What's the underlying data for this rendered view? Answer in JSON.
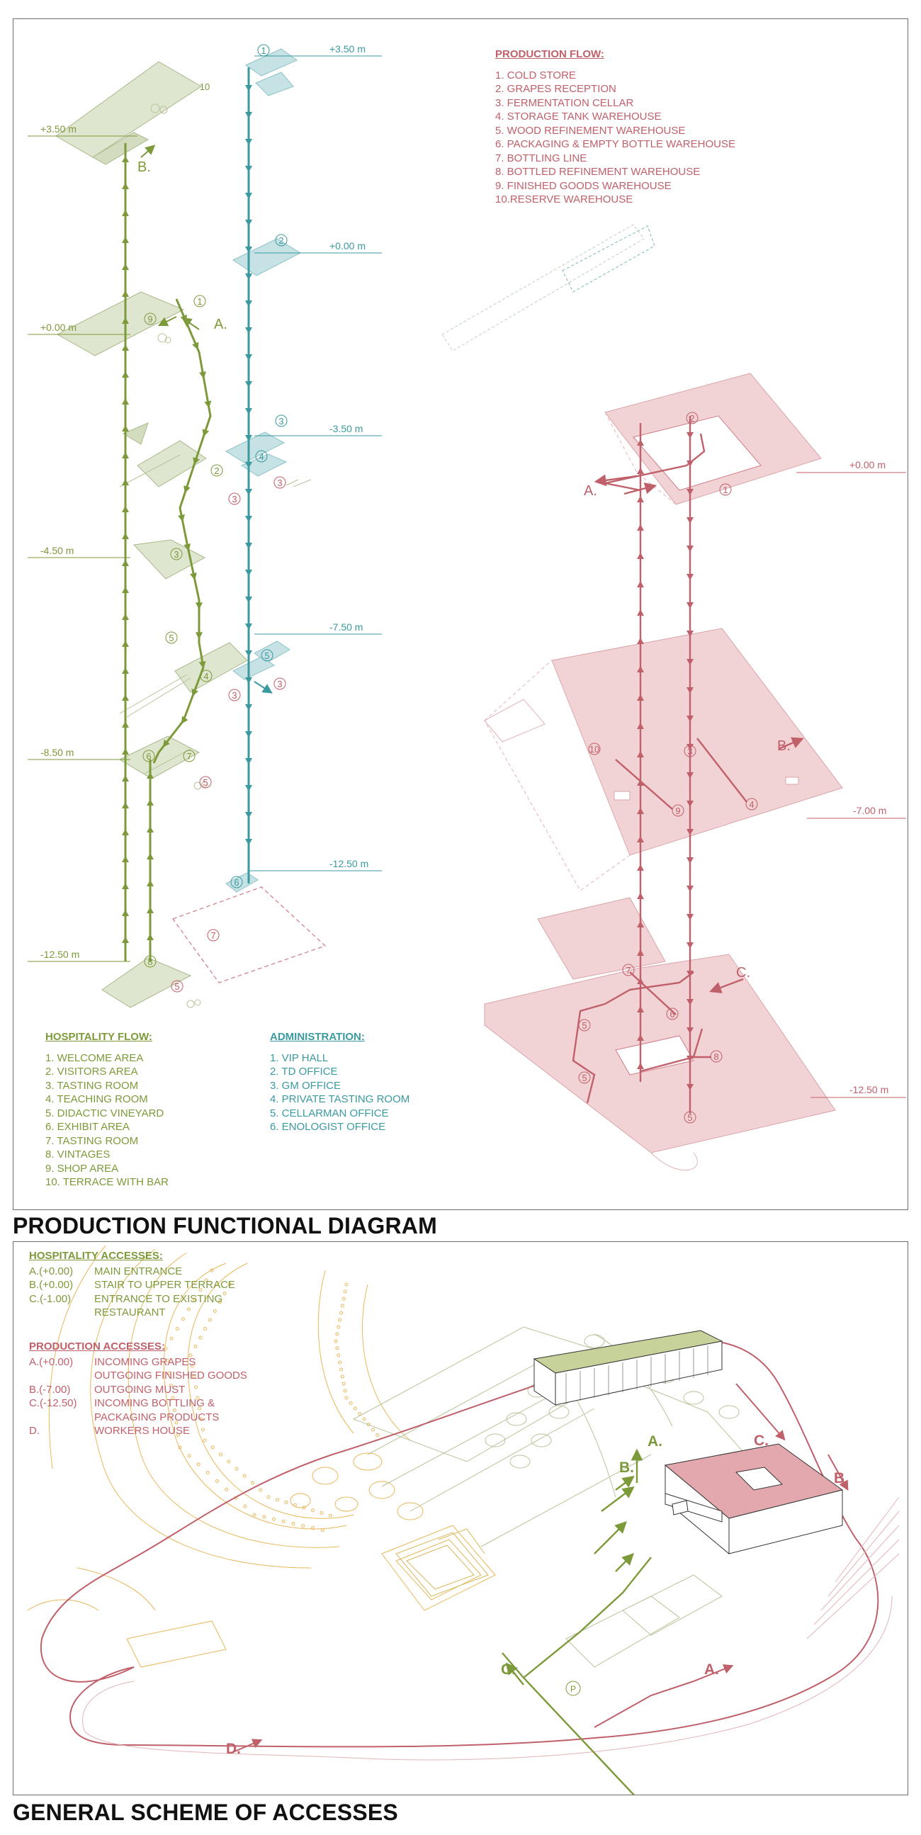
{
  "colors": {
    "hospitality": "#7d9a3a",
    "administration": "#3a9aa0",
    "production": "#c0606a",
    "hosp_fill": "#dfe6cf",
    "admin_fill": "#c6e2e4",
    "prod_fill": "#f2d3d5",
    "site_orange": "#e8b85a"
  },
  "titles": {
    "production_diagram": "PRODUCTION FUNCTIONAL DIAGRAM",
    "accesses_scheme": "GENERAL SCHEME OF ACCESSES"
  },
  "production_flow": {
    "heading": "PRODUCTION FLOW:",
    "items": [
      "1. COLD STORE",
      "2. GRAPES RECEPTION",
      "3. FERMENTATION CELLAR",
      "4. STORAGE TANK WAREHOUSE",
      "5. WOOD REFINEMENT WAREHOUSE",
      "6. PACKAGING & EMPTY BOTTLE WAREHOUSE",
      "7. BOTTLING LINE",
      "8. BOTTLED REFINEMENT WAREHOUSE",
      "9. FINISHED GOODS WAREHOUSE",
      "10.RESERVE WAREHOUSE"
    ]
  },
  "hospitality_flow": {
    "heading": "HOSPITALITY FLOW:",
    "items": [
      "1. WELCOME AREA",
      "2. VISITORS AREA",
      "3. TASTING ROOM",
      "4. TEACHING ROOM",
      "5. DIDACTIC VINEYARD",
      "6. EXHIBIT AREA",
      "7. TASTING ROOM",
      "8. VINTAGES",
      "9. SHOP AREA",
      "10. TERRACE WITH BAR"
    ]
  },
  "administration": {
    "heading": "ADMINISTRATION:",
    "items": [
      "1. VIP HALL",
      "2. TD OFFICE",
      "3. GM OFFICE",
      "4. PRIVATE TASTING ROOM",
      "5. CELLARMAN OFFICE",
      "6. ENOLOGIST OFFICE"
    ]
  },
  "levels_left": {
    "hosp_350": "+3.50 m",
    "hosp_000": "+0.00 m",
    "hosp_m450": "-4.50 m",
    "hosp_m850": "-8.50 m",
    "hosp_m1250": "-12.50 m",
    "admin_350": "+3.50 m",
    "admin_000": "+0.00 m",
    "admin_m350": "-3.50 m",
    "admin_m750": "-7.50 m",
    "admin_m1250": "-12.50 m"
  },
  "levels_right": {
    "l000": "+0.00 m",
    "lm700": "-7.00 m",
    "lm1250": "-12.50 m"
  },
  "diagram_markers": {
    "a": "A.",
    "b": "B.",
    "c": "C.",
    "n1": "1",
    "n2": "2",
    "n3": "3",
    "n4": "4",
    "n5": "5",
    "n6": "6",
    "n7": "7",
    "n8": "8",
    "n9": "9",
    "n10": "10"
  },
  "hospitality_accesses": {
    "heading": "HOSPITALITY ACCESSES:",
    "items": [
      {
        "code": "A.(+0.00)",
        "text": "MAIN ENTRANCE"
      },
      {
        "code": "B.(+0.00)",
        "text": "STAIR TO UPPER TERRACE"
      },
      {
        "code": "C.(-1.00)",
        "text": "ENTRANCE TO EXISTING"
      },
      {
        "code": "",
        "text": "RESTAURANT"
      }
    ]
  },
  "production_accesses": {
    "heading": "PRODUCTION ACCESSES:",
    "items": [
      {
        "code": "A.(+0.00)",
        "text": "INCOMING GRAPES"
      },
      {
        "code": "",
        "text": "OUTGOING FINISHED GOODS"
      },
      {
        "code": "B.(-7.00)",
        "text": "OUTGOING MUST"
      },
      {
        "code": "C.(-12.50)",
        "text": "INCOMING BOTTLING &"
      },
      {
        "code": "",
        "text": "PACKAGING PRODUCTS"
      },
      {
        "code": "D.",
        "text": "WORKERS HOUSE"
      }
    ]
  },
  "site_markers": {
    "a": "A.",
    "b": "B.",
    "c": "C.",
    "d": "D.",
    "p": "P"
  }
}
